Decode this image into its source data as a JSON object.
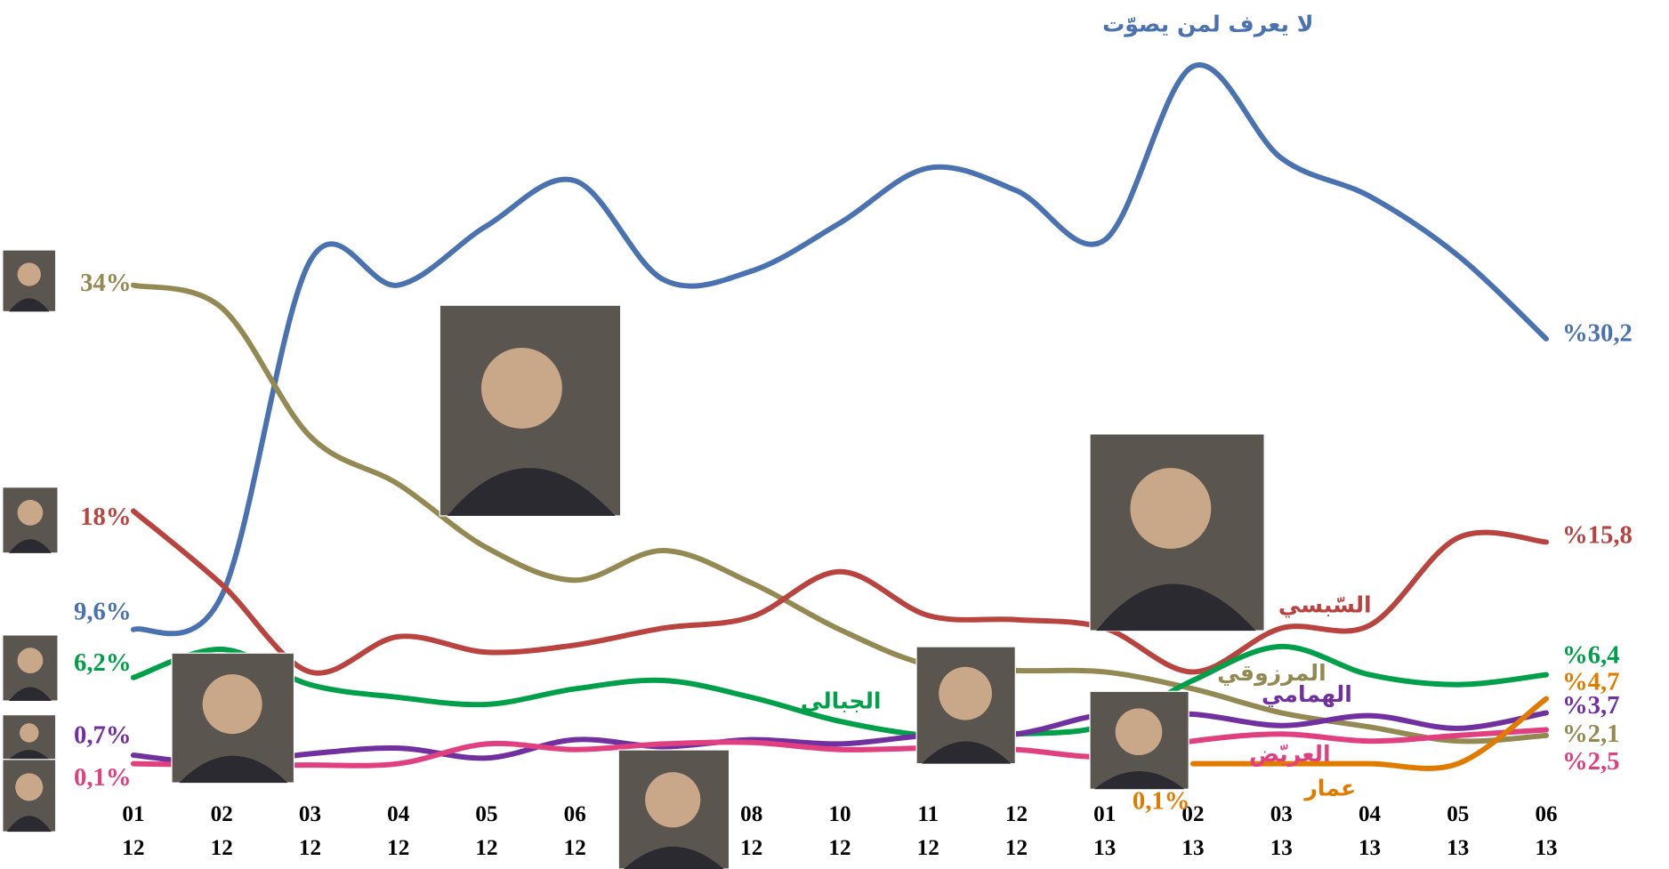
{
  "chart_data": {
    "type": "line",
    "categories": [
      [
        "01",
        "12"
      ],
      [
        "02",
        "12"
      ],
      [
        "03",
        "12"
      ],
      [
        "04",
        "12"
      ],
      [
        "05",
        "12"
      ],
      [
        "06",
        "12"
      ],
      null,
      [
        "08",
        "12"
      ],
      [
        "10",
        "12"
      ],
      [
        "11",
        "12"
      ],
      [
        "12",
        "12"
      ],
      [
        "01",
        "13"
      ],
      [
        "02",
        "13"
      ],
      [
        "03",
        "13"
      ],
      [
        "04",
        "13"
      ],
      [
        "05",
        "13"
      ],
      [
        "06",
        "13"
      ]
    ],
    "ylim": [
      0,
      54
    ],
    "series": [
      {
        "name": "لا يعرف لمن يصوّت",
        "color": "#4a72b0",
        "values": [
          9.6,
          12.0,
          35.7,
          34.0,
          38.2,
          41.4,
          34.4,
          35.0,
          38.4,
          42.3,
          40.7,
          37.2,
          49.5,
          43.0,
          40.3,
          36.1,
          30.2
        ],
        "value_labels": [
          "9,6%",
          null,
          null,
          null,
          null,
          null,
          null,
          null,
          null,
          null,
          null,
          null,
          null,
          null,
          null,
          null,
          "%30,2"
        ]
      },
      {
        "name": "المرزوقي",
        "color": "#938953",
        "values": [
          34,
          32.4,
          23.3,
          19.9,
          15.4,
          13.1,
          15.2,
          12.9,
          9.6,
          7.1,
          6.7,
          6.6,
          5.4,
          3.7,
          2.7,
          1.7,
          2.1
        ],
        "value_labels": [
          "34%",
          null,
          null,
          null,
          null,
          null,
          null,
          null,
          null,
          null,
          null,
          null,
          null,
          null,
          null,
          null,
          "%2,1"
        ]
      },
      {
        "name": "السّبسي",
        "color": "#b8433f",
        "values": [
          18,
          12.8,
          6.6,
          9.1,
          8.0,
          8.5,
          9.7,
          10.5,
          13.7,
          10.6,
          10.3,
          9.7,
          6.6,
          9.7,
          9.9,
          16.1,
          15.8
        ],
        "value_labels": [
          "18%",
          null,
          null,
          null,
          null,
          null,
          null,
          null,
          null,
          null,
          null,
          null,
          null,
          null,
          null,
          null,
          "%15,8"
        ]
      },
      {
        "name": "الجبالي",
        "color": "#00a04a",
        "values": [
          6.2,
          8.2,
          5.7,
          4.8,
          4.3,
          5.4,
          6.0,
          4.8,
          3.1,
          2.1,
          2.2,
          2.8,
          6.0,
          8.4,
          6.4,
          5.7,
          6.4
        ],
        "value_labels": [
          "6,2%",
          null,
          null,
          null,
          null,
          null,
          null,
          null,
          null,
          null,
          null,
          null,
          null,
          null,
          null,
          null,
          "%6,4"
        ]
      },
      {
        "name": "الهمامي",
        "color": "#7030a0",
        "values": [
          0.7,
          0.1,
          0.8,
          1.2,
          0.5,
          1.8,
          1.3,
          1.8,
          1.5,
          2.1,
          2.2,
          3.6,
          3.6,
          2.8,
          3.5,
          2.6,
          3.7
        ],
        "value_labels": [
          "0,7%",
          null,
          null,
          null,
          null,
          null,
          null,
          null,
          null,
          null,
          null,
          null,
          null,
          null,
          null,
          null,
          "%3,7"
        ]
      },
      {
        "name": "العريّض",
        "color": "#e0407f",
        "values": [
          0.1,
          0.0,
          0.0,
          0.1,
          1.5,
          1.1,
          1.5,
          1.6,
          1.1,
          1.2,
          1.1,
          0.6,
          1.7,
          2.2,
          1.7,
          2.1,
          2.5
        ],
        "value_labels": [
          "0,1%",
          null,
          null,
          null,
          null,
          null,
          null,
          null,
          null,
          null,
          null,
          null,
          null,
          null,
          null,
          null,
          "%2,5"
        ]
      },
      {
        "name": "عمار",
        "color": "#e07b00",
        "values": [
          null,
          null,
          null,
          null,
          null,
          null,
          null,
          null,
          null,
          null,
          null,
          null,
          0.1,
          0.1,
          0.1,
          0.1,
          4.7
        ],
        "value_labels": [
          null,
          null,
          null,
          null,
          null,
          null,
          null,
          null,
          null,
          null,
          null,
          null,
          "0,1%",
          null,
          null,
          null,
          "%4,7"
        ]
      }
    ]
  }
}
